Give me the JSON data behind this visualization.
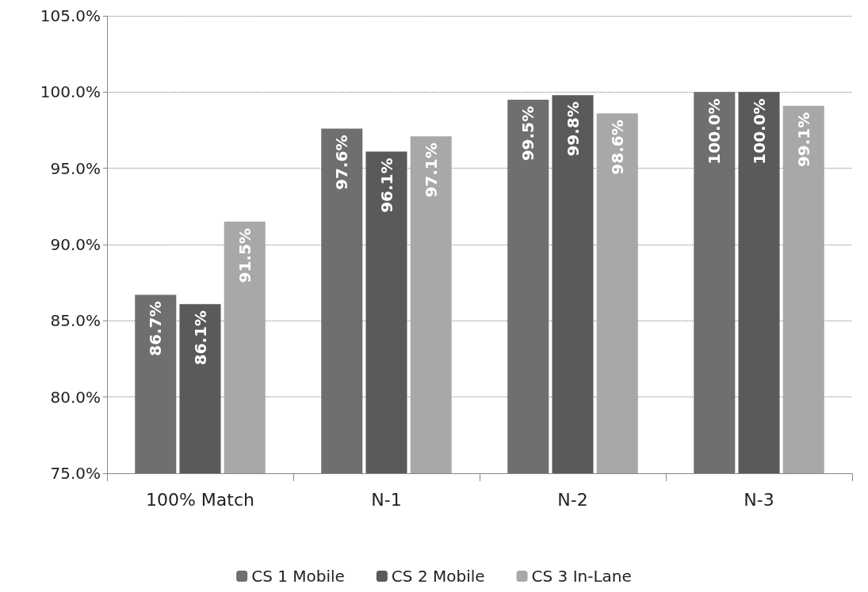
{
  "chart_data": {
    "type": "bar",
    "categories": [
      "100% Match",
      "N-1",
      "N-2",
      "N-3"
    ],
    "series": [
      {
        "name": "CS 1 Mobile",
        "color": "#6f6f6f",
        "values": [
          86.7,
          97.6,
          99.5,
          100.0
        ],
        "value_labels": [
          "86.7%",
          "97.6%",
          "99.5%",
          "100.0%"
        ]
      },
      {
        "name": "CS 2 Mobile",
        "color": "#5a5a5a",
        "values": [
          86.1,
          96.1,
          99.8,
          100.0
        ],
        "value_labels": [
          "86.1%",
          "96.1%",
          "99.8%",
          "100.0%"
        ]
      },
      {
        "name": "CS 3 In-Lane",
        "color": "#a8a8a8",
        "values": [
          91.5,
          97.1,
          98.6,
          99.1
        ],
        "value_labels": [
          "91.5%",
          "97.1%",
          "98.6%",
          "99.1%"
        ]
      }
    ],
    "ylim": [
      75,
      105
    ],
    "yticks": [
      {
        "value": 75,
        "label": "75.0%"
      },
      {
        "value": 80,
        "label": "80.0%"
      },
      {
        "value": 85,
        "label": "85.0%"
      },
      {
        "value": 90,
        "label": "90.0%"
      },
      {
        "value": 95,
        "label": "95.0%"
      },
      {
        "value": 100,
        "label": "100.0%"
      },
      {
        "value": 105,
        "label": "105.0%"
      }
    ],
    "grid": "y",
    "legend": "bottom"
  }
}
